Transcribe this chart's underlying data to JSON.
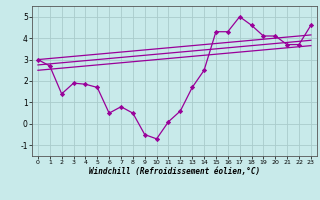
{
  "xlabel": "Windchill (Refroidissement éolien,°C)",
  "bg_color": "#c8eaea",
  "line_color": "#990099",
  "grid_color": "#aacccc",
  "x_data": [
    0,
    1,
    2,
    3,
    4,
    5,
    6,
    7,
    8,
    9,
    10,
    11,
    12,
    13,
    14,
    15,
    16,
    17,
    18,
    19,
    20,
    21,
    22,
    23
  ],
  "y_main": [
    3.0,
    2.7,
    1.4,
    1.9,
    1.85,
    1.7,
    0.5,
    0.8,
    0.5,
    -0.5,
    -0.7,
    0.1,
    0.6,
    1.7,
    2.5,
    4.3,
    4.3,
    5.0,
    4.6,
    4.1,
    4.1,
    3.7,
    3.7,
    4.6
  ],
  "reg_lines": [
    {
      "x0": 0,
      "x1": 23,
      "y0": 3.0,
      "y1": 4.15
    },
    {
      "x0": 0,
      "x1": 23,
      "y0": 2.75,
      "y1": 3.9
    },
    {
      "x0": 0,
      "x1": 23,
      "y0": 2.5,
      "y1": 3.65
    }
  ],
  "ylim": [
    -1.5,
    5.5
  ],
  "xlim": [
    -0.5,
    23.5
  ],
  "yticks": [
    -1,
    0,
    1,
    2,
    3,
    4,
    5
  ],
  "xticks": [
    0,
    1,
    2,
    3,
    4,
    5,
    6,
    7,
    8,
    9,
    10,
    11,
    12,
    13,
    14,
    15,
    16,
    17,
    18,
    19,
    20,
    21,
    22,
    23
  ],
  "figsize": [
    3.2,
    2.0
  ],
  "dpi": 100
}
